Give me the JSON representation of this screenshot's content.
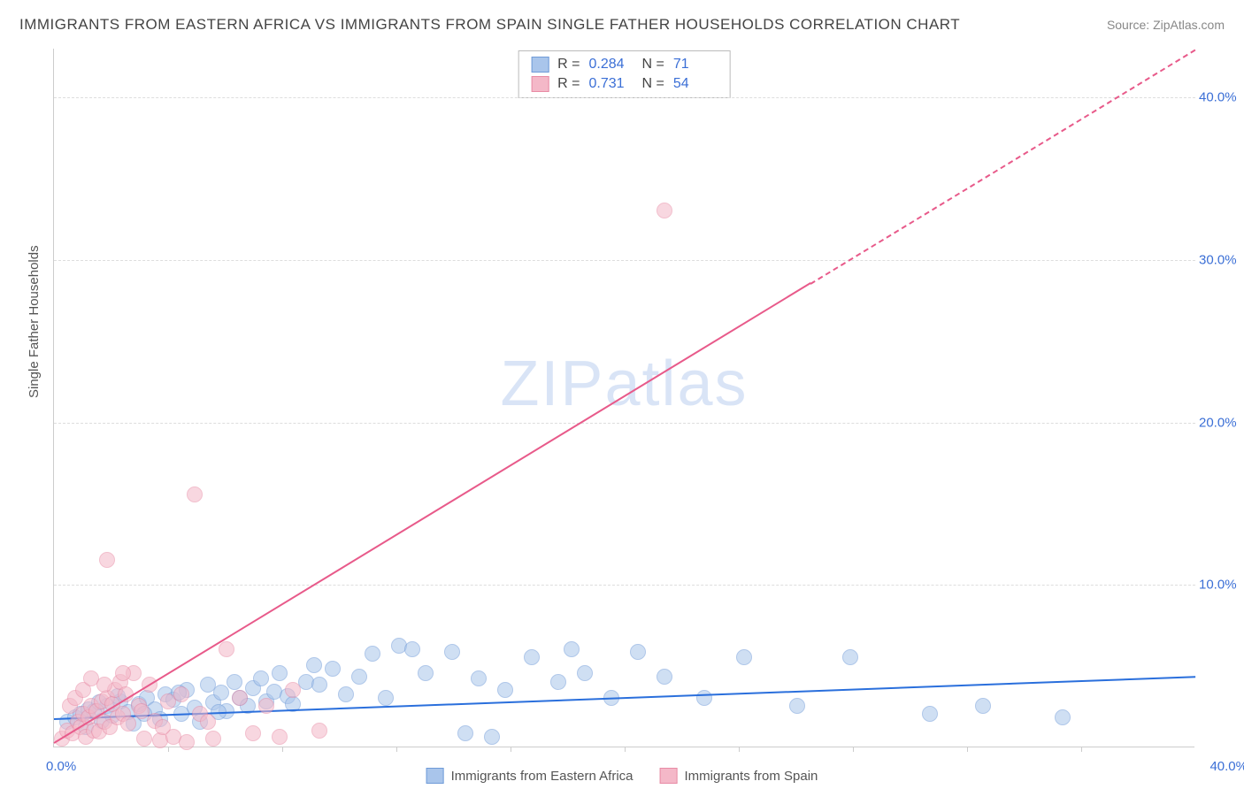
{
  "title": "IMMIGRANTS FROM EASTERN AFRICA VS IMMIGRANTS FROM SPAIN SINGLE FATHER HOUSEHOLDS CORRELATION CHART",
  "source": "Source: ZipAtlas.com",
  "watermark": "ZIPatlas",
  "y_axis_label": "Single Father Households",
  "chart": {
    "type": "scatter",
    "background_color": "#ffffff",
    "grid_color": "#dddddd",
    "axis_color": "#cccccc",
    "tick_color": "#3b6fd6",
    "x_min": 0.0,
    "x_max": 43.0,
    "y_min": 0.0,
    "y_max": 43.0,
    "y_ticks": [
      10.0,
      20.0,
      30.0,
      40.0
    ],
    "y_tick_labels": [
      "10.0%",
      "20.0%",
      "30.0%",
      "40.0%"
    ],
    "x_ticks": [
      4.3,
      8.6,
      12.9,
      17.2,
      21.5,
      25.8,
      30.1,
      34.4,
      38.7
    ],
    "x_tick_min_label": "0.0%",
    "x_tick_max_label": "40.0%",
    "marker_radius": 9,
    "marker_border_width": 1.5,
    "series": [
      {
        "name": "Immigrants from Eastern Africa",
        "fill_color": "#a9c5eb",
        "fill_opacity": 0.55,
        "stroke_color": "#6f9bd8",
        "trend_color": "#2a6fdc",
        "R": "0.284",
        "N": "71",
        "trend": {
          "y_at_x0": 1.8,
          "y_at_xmax": 4.4,
          "dashed_from_x": null
        },
        "points": [
          [
            0.5,
            1.5
          ],
          [
            0.8,
            1.8
          ],
          [
            1.0,
            2.0
          ],
          [
            1.2,
            1.2
          ],
          [
            1.5,
            2.2
          ],
          [
            1.8,
            1.6
          ],
          [
            2.0,
            2.5
          ],
          [
            2.2,
            1.9
          ],
          [
            2.5,
            2.8
          ],
          [
            2.8,
            2.1
          ],
          [
            3.0,
            1.4
          ],
          [
            3.2,
            2.6
          ],
          [
            3.5,
            3.0
          ],
          [
            3.8,
            2.3
          ],
          [
            4.0,
            1.7
          ],
          [
            4.2,
            3.2
          ],
          [
            4.5,
            2.9
          ],
          [
            4.8,
            2.0
          ],
          [
            5.0,
            3.5
          ],
          [
            5.3,
            2.4
          ],
          [
            5.5,
            1.5
          ],
          [
            5.8,
            3.8
          ],
          [
            6.0,
            2.7
          ],
          [
            6.3,
            3.3
          ],
          [
            6.5,
            2.2
          ],
          [
            6.8,
            4.0
          ],
          [
            7.0,
            3.0
          ],
          [
            7.3,
            2.5
          ],
          [
            7.5,
            3.6
          ],
          [
            7.8,
            4.2
          ],
          [
            8.0,
            2.8
          ],
          [
            8.3,
            3.4
          ],
          [
            8.5,
            4.5
          ],
          [
            8.8,
            3.1
          ],
          [
            9.0,
            2.6
          ],
          [
            9.5,
            4.0
          ],
          [
            10.0,
            3.8
          ],
          [
            10.5,
            4.8
          ],
          [
            11.0,
            3.2
          ],
          [
            11.5,
            4.3
          ],
          [
            12.0,
            5.7
          ],
          [
            12.5,
            3.0
          ],
          [
            13.0,
            6.2
          ],
          [
            13.5,
            6.0
          ],
          [
            14.0,
            4.5
          ],
          [
            15.0,
            5.8
          ],
          [
            15.5,
            0.8
          ],
          [
            16.0,
            4.2
          ],
          [
            16.5,
            0.6
          ],
          [
            17.0,
            3.5
          ],
          [
            18.0,
            5.5
          ],
          [
            19.0,
            4.0
          ],
          [
            19.5,
            6.0
          ],
          [
            20.0,
            4.5
          ],
          [
            21.0,
            3.0
          ],
          [
            22.0,
            5.8
          ],
          [
            23.0,
            4.3
          ],
          [
            24.5,
            3.0
          ],
          [
            26.0,
            5.5
          ],
          [
            28.0,
            2.5
          ],
          [
            30.0,
            5.5
          ],
          [
            33.0,
            2.0
          ],
          [
            35.0,
            2.5
          ],
          [
            38.0,
            1.8
          ],
          [
            1.3,
            2.3
          ],
          [
            1.7,
            2.7
          ],
          [
            2.4,
            3.1
          ],
          [
            3.4,
            2.0
          ],
          [
            4.7,
            3.3
          ],
          [
            6.2,
            2.1
          ],
          [
            9.8,
            5.0
          ]
        ]
      },
      {
        "name": "Immigrants from Spain",
        "fill_color": "#f4b8c8",
        "fill_opacity": 0.55,
        "stroke_color": "#e88ba5",
        "trend_color": "#e85a8a",
        "R": "0.731",
        "N": "54",
        "trend": {
          "y_at_x0": 0.3,
          "y_at_xmax": 43.0,
          "dashed_from_x": 28.5
        },
        "points": [
          [
            0.3,
            0.5
          ],
          [
            0.5,
            1.0
          ],
          [
            0.7,
            0.8
          ],
          [
            0.9,
            1.5
          ],
          [
            1.0,
            1.2
          ],
          [
            1.1,
            2.0
          ],
          [
            1.2,
            0.6
          ],
          [
            1.3,
            1.8
          ],
          [
            1.4,
            2.5
          ],
          [
            1.5,
            1.0
          ],
          [
            1.6,
            2.2
          ],
          [
            1.7,
            0.9
          ],
          [
            1.8,
            2.8
          ],
          [
            1.9,
            1.5
          ],
          [
            2.0,
            3.0
          ],
          [
            2.1,
            1.2
          ],
          [
            2.2,
            2.6
          ],
          [
            2.3,
            3.5
          ],
          [
            2.4,
            1.8
          ],
          [
            2.5,
            4.0
          ],
          [
            2.6,
            2.0
          ],
          [
            2.7,
            3.2
          ],
          [
            2.8,
            1.4
          ],
          [
            3.0,
            4.5
          ],
          [
            3.2,
            2.5
          ],
          [
            3.4,
            0.5
          ],
          [
            3.6,
            3.8
          ],
          [
            3.8,
            1.6
          ],
          [
            4.0,
            0.4
          ],
          [
            4.3,
            2.8
          ],
          [
            4.5,
            0.6
          ],
          [
            4.8,
            3.2
          ],
          [
            5.0,
            0.3
          ],
          [
            5.5,
            2.0
          ],
          [
            6.0,
            0.5
          ],
          [
            6.5,
            6.0
          ],
          [
            7.0,
            3.0
          ],
          [
            7.5,
            0.8
          ],
          [
            8.0,
            2.5
          ],
          [
            8.5,
            0.6
          ],
          [
            9.0,
            3.5
          ],
          [
            10.0,
            1.0
          ],
          [
            2.0,
            11.5
          ],
          [
            5.3,
            15.5
          ],
          [
            0.6,
            2.5
          ],
          [
            0.8,
            3.0
          ],
          [
            1.1,
            3.5
          ],
          [
            1.4,
            4.2
          ],
          [
            1.9,
            3.8
          ],
          [
            2.6,
            4.5
          ],
          [
            3.3,
            2.2
          ],
          [
            4.1,
            1.2
          ],
          [
            23.0,
            33.0
          ],
          [
            5.8,
            1.5
          ]
        ]
      }
    ]
  },
  "stats_box": {
    "border_color": "#bbbbbb",
    "rows": [
      {
        "swatch_fill": "#a9c5eb",
        "swatch_border": "#6f9bd8",
        "R_label": "R =",
        "R_val": "0.284",
        "N_label": "N =",
        "N_val": "71"
      },
      {
        "swatch_fill": "#f4b8c8",
        "swatch_border": "#e88ba5",
        "R_label": "R =",
        "R_val": "0.731",
        "N_label": "N =",
        "N_val": "54"
      }
    ]
  },
  "legend": {
    "items": [
      {
        "swatch_fill": "#a9c5eb",
        "swatch_border": "#6f9bd8",
        "label": "Immigrants from Eastern Africa"
      },
      {
        "swatch_fill": "#f4b8c8",
        "swatch_border": "#e88ba5",
        "label": "Immigrants from Spain"
      }
    ]
  }
}
